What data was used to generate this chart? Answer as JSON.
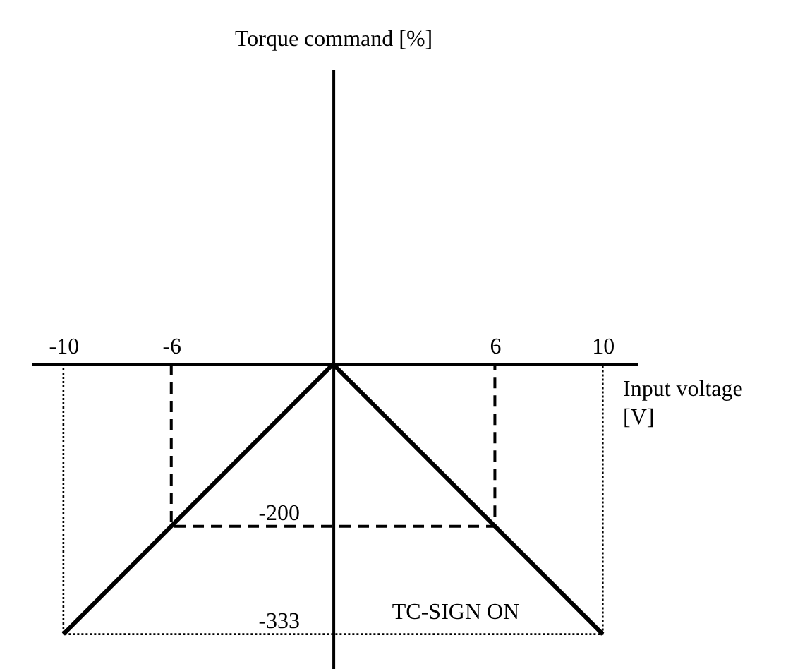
{
  "chart_data": {
    "type": "line",
    "xlabel": "Input voltage [V]",
    "ylabel": "Torque command [%]",
    "xlim": [
      -11.2,
      11.3
    ],
    "ylim": [
      -376,
      364
    ],
    "xticks": [
      -10,
      -6,
      6,
      10
    ],
    "yticks": [
      -333,
      -200
    ],
    "grid": false,
    "series": [
      {
        "color": "#000000",
        "x": [
          -10,
          0,
          10
        ],
        "values": [
          -333,
          0,
          -333
        ],
        "line_style": "solid"
      },
      {
        "color": "#000000",
        "x": [
          -6,
          -6,
          6,
          6
        ],
        "values": [
          0,
          -200,
          -200,
          0
        ],
        "line_style": "dashed"
      },
      {
        "color": "#000000",
        "x": [
          -10,
          -10,
          10,
          10
        ],
        "values": [
          0,
          -333,
          -333,
          0
        ],
        "line_style": "dotted"
      }
    ],
    "annotations": [
      "TC-SIGN ON"
    ]
  }
}
